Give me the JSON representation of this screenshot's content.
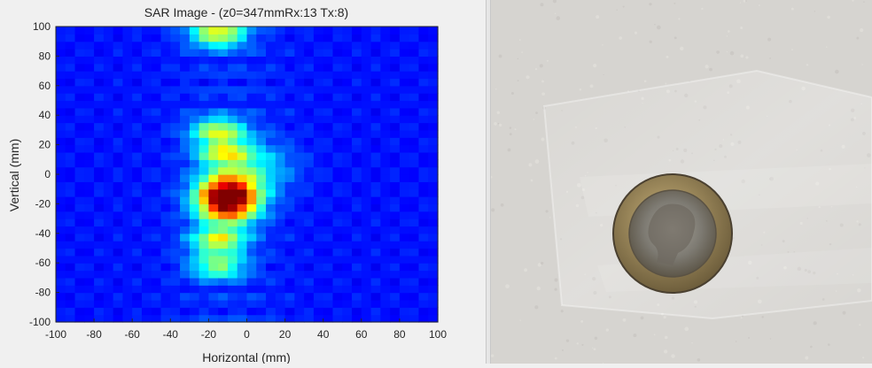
{
  "chart_data": {
    "type": "heatmap",
    "title": "SAR Image - (z0=347mmRx:13 Tx:8)",
    "xlabel": "Horizontal (mm)",
    "ylabel": "Vertical (mm)",
    "xlim": [
      -100,
      100
    ],
    "ylim": [
      -100,
      100
    ],
    "xticks": [
      -100,
      -80,
      -60,
      -40,
      -20,
      0,
      20,
      40,
      60,
      80,
      100
    ],
    "yticks": [
      -100,
      -80,
      -60,
      -40,
      -20,
      0,
      20,
      40,
      60,
      80,
      100
    ],
    "colormap": "jet",
    "grid": false,
    "intensity_peaks": [
      {
        "x": -10,
        "y": -16,
        "value": 1.0
      },
      {
        "x": -15,
        "y": 95,
        "value": 0.45
      },
      {
        "x": -15,
        "y": 30,
        "value": 0.4
      },
      {
        "x": -12,
        "y": 15,
        "value": 0.38
      },
      {
        "x": -15,
        "y": -45,
        "value": 0.42
      },
      {
        "x": -15,
        "y": -62,
        "value": 0.35
      }
    ]
  },
  "photo": {
    "description_icon": "coin-photo",
    "wall_color": "#d7d5d1",
    "coin_outer_color": "#9a8a64",
    "coin_inner_color": "#8f8f8a"
  }
}
